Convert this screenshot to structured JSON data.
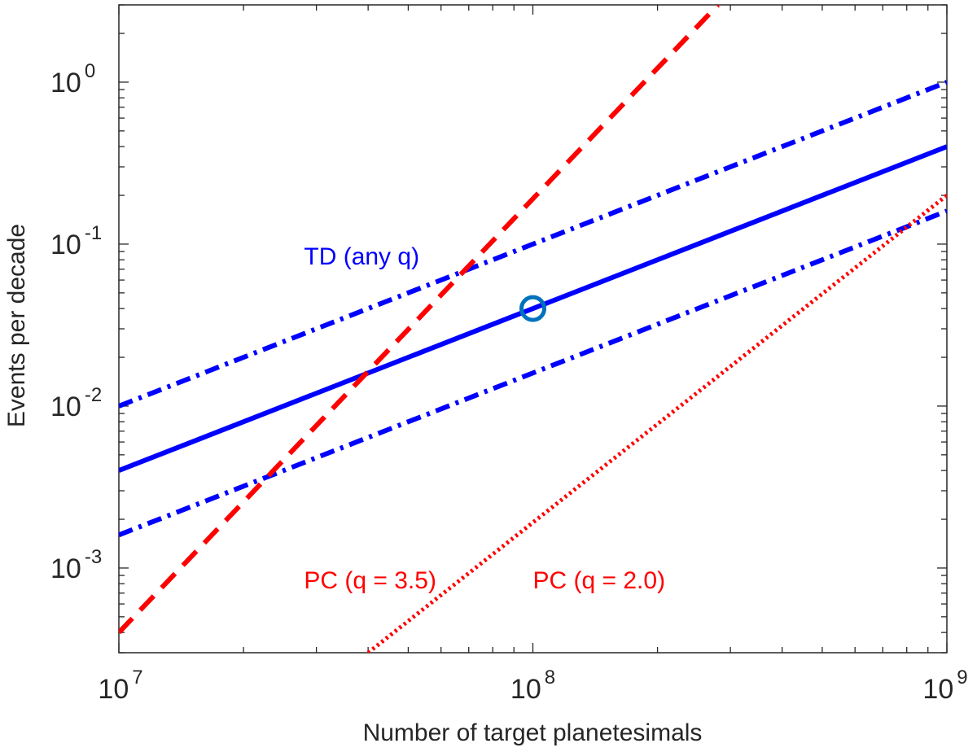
{
  "chart_data": {
    "type": "line",
    "xscale": "log",
    "yscale": "log",
    "xlabel": "Number of target planetesimals",
    "ylabel": "Events per decade",
    "xlim": [
      10000000,
      1000000000
    ],
    "ylim": [
      0.0003,
      3
    ],
    "x_ticks": [
      {
        "base": "10",
        "exp": "7"
      },
      {
        "base": "10",
        "exp": "8"
      },
      {
        "base": "10",
        "exp": "9"
      }
    ],
    "y_ticks": [
      {
        "base": "10",
        "exp": "-3",
        "value": 0.001
      },
      {
        "base": "10",
        "exp": "-2",
        "value": 0.01
      },
      {
        "base": "10",
        "exp": "-1",
        "value": 0.1
      },
      {
        "base": "10",
        "exp": "0",
        "value": 1
      }
    ],
    "series": [
      {
        "name": "TD upper",
        "color": "#0000ff",
        "style": "dashdot",
        "x": [
          10000000,
          1000000000
        ],
        "y": [
          0.01,
          1.0
        ]
      },
      {
        "name": "TD central",
        "color": "#0000ff",
        "style": "solid",
        "x": [
          10000000,
          1000000000
        ],
        "y": [
          0.004,
          0.4
        ]
      },
      {
        "name": "TD lower",
        "color": "#0000ff",
        "style": "dashdot",
        "x": [
          10000000,
          1000000000
        ],
        "y": [
          0.0016,
          0.16
        ]
      },
      {
        "name": "PC q=3.5",
        "color": "#ff0000",
        "style": "dashed",
        "x": [
          10000000,
          280000000
        ],
        "y": [
          0.0004,
          3.0
        ]
      },
      {
        "name": "PC q=2.0",
        "color": "#ff0000",
        "style": "dotted",
        "x": [
          40000000,
          1000000000
        ],
        "y": [
          0.0003,
          0.2
        ]
      }
    ],
    "markers": [
      {
        "name": "reference point",
        "x": 100000000,
        "y": 0.04,
        "color": "#0072bd",
        "shape": "circle"
      }
    ],
    "annotations": [
      {
        "text": "TD (any q)",
        "color": "#0000ff",
        "x": 28000000,
        "y": 0.075
      },
      {
        "text": "PC (q = 3.5)",
        "color": "#ff0000",
        "x": 28000000,
        "y": 0.00075
      },
      {
        "text": "PC (q = 2.0)",
        "color": "#ff0000",
        "x": 100000000,
        "y": 0.00075
      }
    ]
  }
}
